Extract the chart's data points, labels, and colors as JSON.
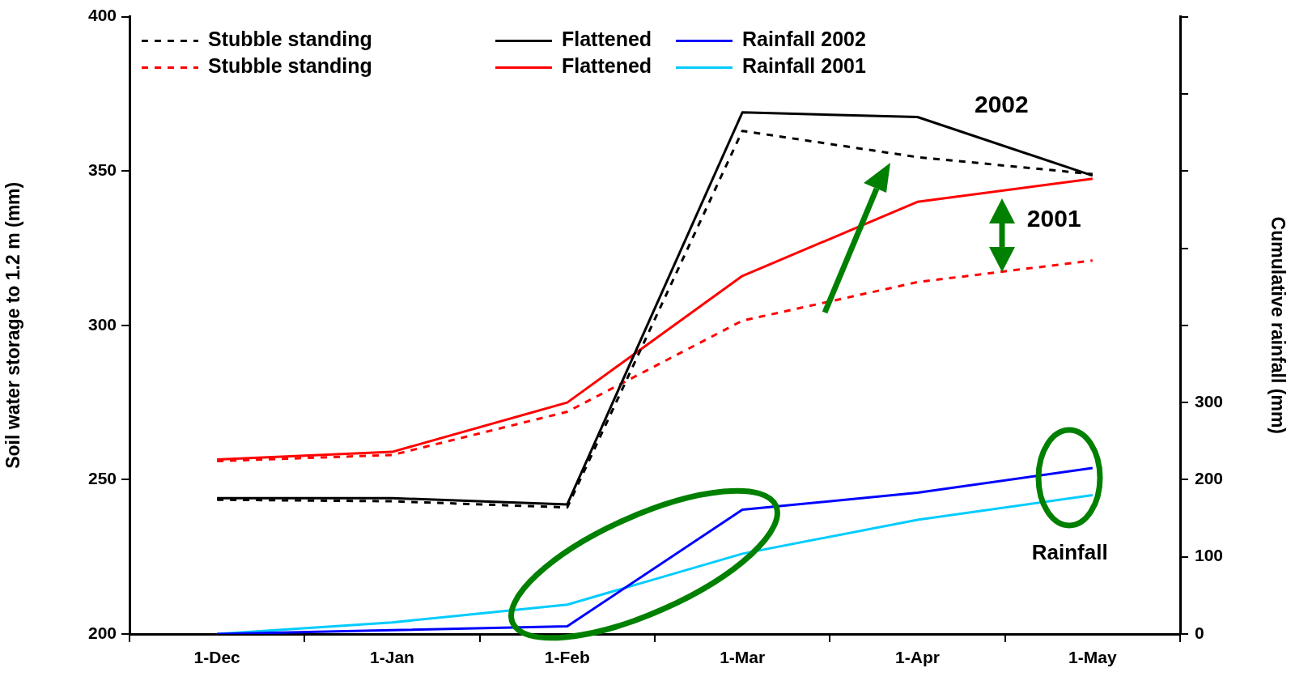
{
  "chart_data": {
    "type": "line",
    "ylabel": "Soil water storage to 1.2 m (mm)",
    "y2label": "Cumulative rainfall (mm)",
    "categories": [
      "1-Dec",
      "1-Jan",
      "1-Feb",
      "1-Mar",
      "1-Apr",
      "1-May"
    ],
    "series": [
      {
        "name": "Stubble standing",
        "color": "#000000",
        "line_style": "dashed",
        "values": [
          243.5,
          243,
          241,
          363,
          354.5,
          349
        ]
      },
      {
        "name": "Flattened",
        "color": "#000000",
        "line_style": "solid",
        "values": [
          244,
          244,
          242,
          369,
          367.5,
          348.5
        ]
      },
      {
        "name": "Rainfall 2002",
        "color": "#0000ff",
        "line_style": "solid",
        "axis": "y2",
        "values": [
          0,
          5,
          10,
          161,
          183,
          215
        ]
      },
      {
        "name": "Stubble standing",
        "color": "#ff0000",
        "line_style": "dashed",
        "values": [
          256,
          258,
          272,
          301.5,
          314,
          321
        ]
      },
      {
        "name": "Flattened",
        "color": "#ff0000",
        "line_style": "solid",
        "values": [
          256.5,
          259,
          275,
          316,
          340,
          347.5
        ]
      },
      {
        "name": "Rainfall 2001",
        "color": "#00ccff",
        "line_style": "solid",
        "axis": "y2",
        "values": [
          0,
          15,
          38,
          104,
          148,
          180
        ]
      }
    ],
    "ylim": [
      200,
      400
    ],
    "yticks": [
      200,
      250,
      300,
      350,
      400
    ],
    "y2lim": [
      0,
      800
    ],
    "y2ticks": [
      0,
      100,
      200,
      300,
      {
        "value": 400,
        "label": null
      },
      {
        "value": 500,
        "label": null
      },
      {
        "value": 600,
        "label": null
      },
      {
        "value": 700,
        "label": null
      },
      {
        "value": 800,
        "label": null
      }
    ],
    "legend": "top left",
    "grid": false,
    "marker": "none",
    "annotations": [
      "2002",
      "2001",
      "Rainfall"
    ]
  }
}
